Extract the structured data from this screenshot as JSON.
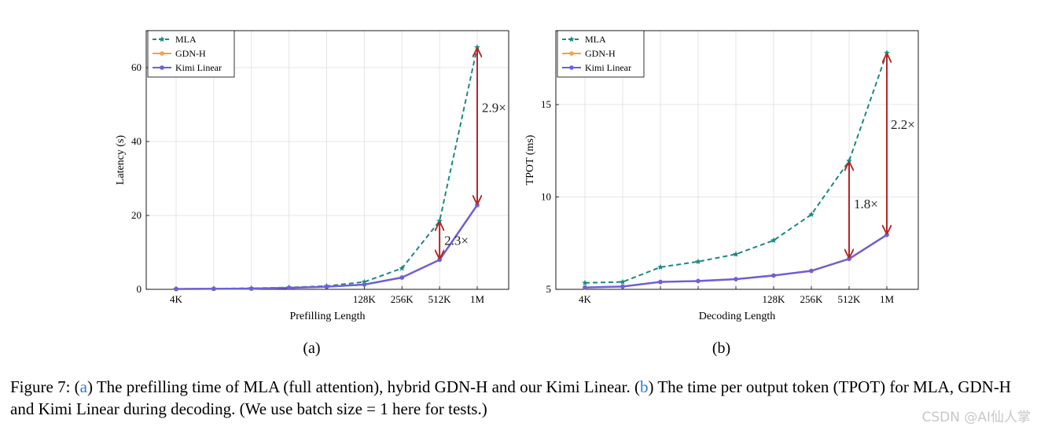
{
  "chart_data": [
    {
      "type": "line",
      "panel_label": "(a)",
      "xlabel": "Prefilling Length",
      "ylabel": "Latency (s)",
      "x_positions": [
        0,
        1,
        2,
        3,
        4,
        5,
        6,
        7,
        8
      ],
      "x_tick_labels": [
        {
          "pos": 0,
          "label": "4K"
        },
        {
          "pos": 5,
          "label": "128K"
        },
        {
          "pos": 6,
          "label": "256K"
        },
        {
          "pos": 7,
          "label": "512K"
        },
        {
          "pos": 8,
          "label": "1M"
        }
      ],
      "ylim": [
        0,
        70
      ],
      "yticks": [
        0,
        20,
        40,
        60
      ],
      "grid": true,
      "legend_position": "top-left",
      "series": [
        {
          "name": "MLA",
          "color": "#1a8a80",
          "dashed": true,
          "marker": "star",
          "values": [
            0.1,
            0.2,
            0.3,
            0.5,
            0.9,
            2.0,
            5.7,
            18.5,
            65.5
          ]
        },
        {
          "name": "GDN-H",
          "color": "#f5a04a",
          "dashed": false,
          "marker": "circle",
          "values": [
            0.1,
            0.15,
            0.2,
            0.4,
            0.7,
            1.3,
            3.2,
            8.0,
            22.8
          ]
        },
        {
          "name": "Kimi Linear",
          "color": "#6a5fe0",
          "dashed": false,
          "marker": "circle",
          "values": [
            0.1,
            0.15,
            0.2,
            0.4,
            0.7,
            1.3,
            3.2,
            8.0,
            22.8
          ]
        }
      ],
      "annotations": [
        {
          "x": 7,
          "from": 18.5,
          "to": 8.0,
          "text": "2.3×"
        },
        {
          "x": 8,
          "from": 65.5,
          "to": 22.8,
          "text": "2.9×"
        }
      ]
    },
    {
      "type": "line",
      "panel_label": "(b)",
      "xlabel": "Decoding Length",
      "ylabel": "TPOT (ms)",
      "x_positions": [
        0,
        1,
        2,
        3,
        4,
        5,
        6,
        7,
        8
      ],
      "x_tick_labels": [
        {
          "pos": 0,
          "label": "4K"
        },
        {
          "pos": 5,
          "label": "128K"
        },
        {
          "pos": 6,
          "label": "256K"
        },
        {
          "pos": 7,
          "label": "512K"
        },
        {
          "pos": 8,
          "label": "1M"
        }
      ],
      "ylim": [
        5,
        19
      ],
      "yticks": [
        5,
        10,
        15
      ],
      "grid": true,
      "legend_position": "top-left",
      "series": [
        {
          "name": "MLA",
          "color": "#1a8a80",
          "dashed": true,
          "marker": "star",
          "values": [
            5.35,
            5.4,
            6.2,
            6.5,
            6.9,
            7.65,
            9.05,
            11.95,
            17.8
          ]
        },
        {
          "name": "GDN-H",
          "color": "#f5a04a",
          "dashed": false,
          "marker": "circle",
          "values": [
            5.1,
            5.15,
            5.4,
            5.45,
            5.55,
            5.75,
            6.0,
            6.65,
            7.95
          ]
        },
        {
          "name": "Kimi Linear",
          "color": "#6a5fe0",
          "dashed": false,
          "marker": "circle",
          "values": [
            5.1,
            5.15,
            5.4,
            5.45,
            5.55,
            5.75,
            6.0,
            6.65,
            7.95
          ]
        }
      ],
      "annotations": [
        {
          "x": 7,
          "from": 11.95,
          "to": 6.65,
          "text": "1.8×"
        },
        {
          "x": 8,
          "from": 17.8,
          "to": 7.95,
          "text": "2.2×"
        }
      ]
    }
  ],
  "caption": {
    "lead": "Figure 7: (",
    "ref_a": "a",
    "part1": ") The prefilling time of MLA (full attention), hybrid GDN-H and our Kimi Linear. (",
    "ref_b": "b",
    "part2": ") The time per output token (TPOT) for MLA, GDN-H and Kimi Linear during decoding. (We use batch size = 1 here for tests.)"
  },
  "watermark": "CSDN @AI仙人掌"
}
